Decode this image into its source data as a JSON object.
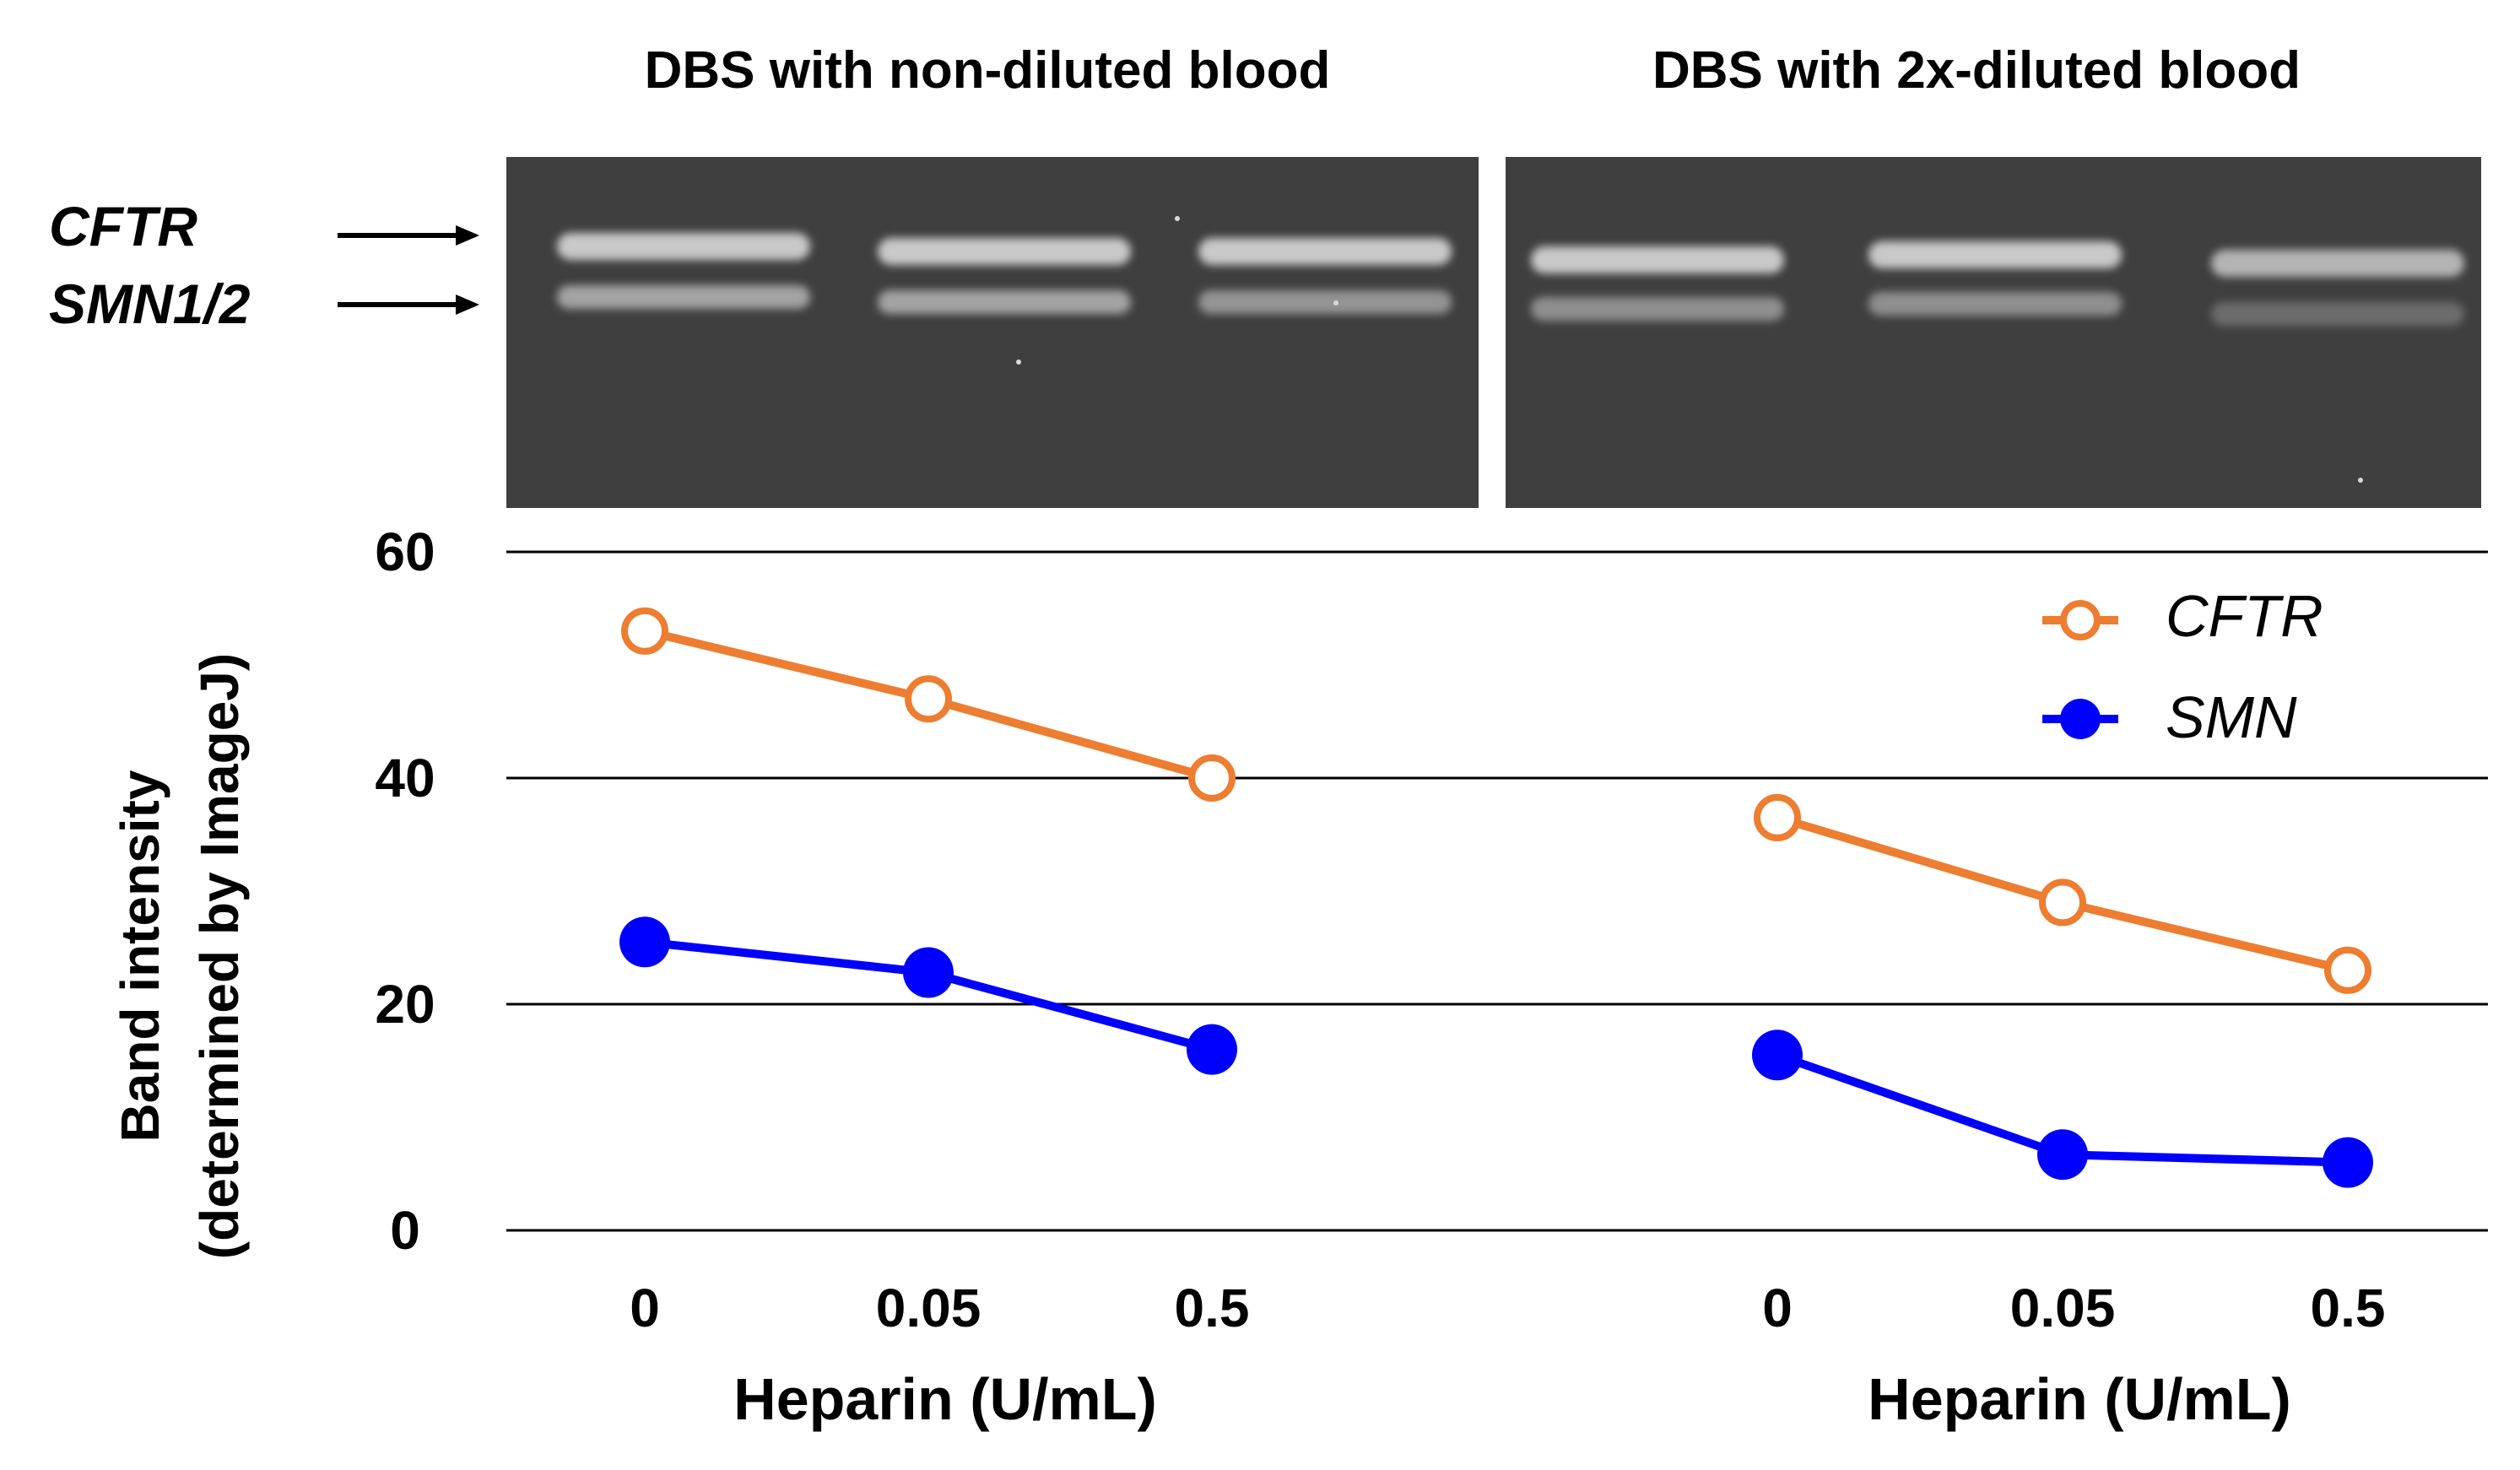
{
  "panels": [
    {
      "title": "DBS with non-diluted blood"
    },
    {
      "title": "DBS with 2x-diluted blood"
    }
  ],
  "gel_labels": {
    "top": "CFTR",
    "bottom": "SMN1/2"
  },
  "colors": {
    "cftr": "#ED7D31",
    "smn": "#0000FF",
    "grid": "#000000",
    "gel": "#3f3f3f"
  },
  "chart_data": {
    "type": "line",
    "ylabel_line1": "Band intensity",
    "ylabel_line2": "(determined by ImageJ)",
    "ylim": [
      0,
      60
    ],
    "yticks": [
      0,
      20,
      40,
      60
    ],
    "grid": true,
    "legend_position": "top-right",
    "groups": [
      {
        "categories": [
          "0",
          "0.05",
          "0.5"
        ],
        "xlabel": "Heparin (U/mL)",
        "series": [
          {
            "name": "CFTR",
            "values": [
              53,
              47,
              40
            ]
          },
          {
            "name": "SMN",
            "values": [
              25.5,
              22.8,
              16
            ]
          }
        ]
      },
      {
        "categories": [
          "0",
          "0.05",
          "0.5"
        ],
        "xlabel": "Heparin (U/mL)",
        "series": [
          {
            "name": "CFTR",
            "values": [
              36.5,
              29,
              23
            ]
          },
          {
            "name": "SMN",
            "values": [
              15.5,
              6.7,
              6
            ]
          }
        ]
      }
    ],
    "legend": [
      {
        "name": "CFTR",
        "marker": "open-circle"
      },
      {
        "name": "SMN",
        "marker": "filled-circle"
      }
    ]
  }
}
